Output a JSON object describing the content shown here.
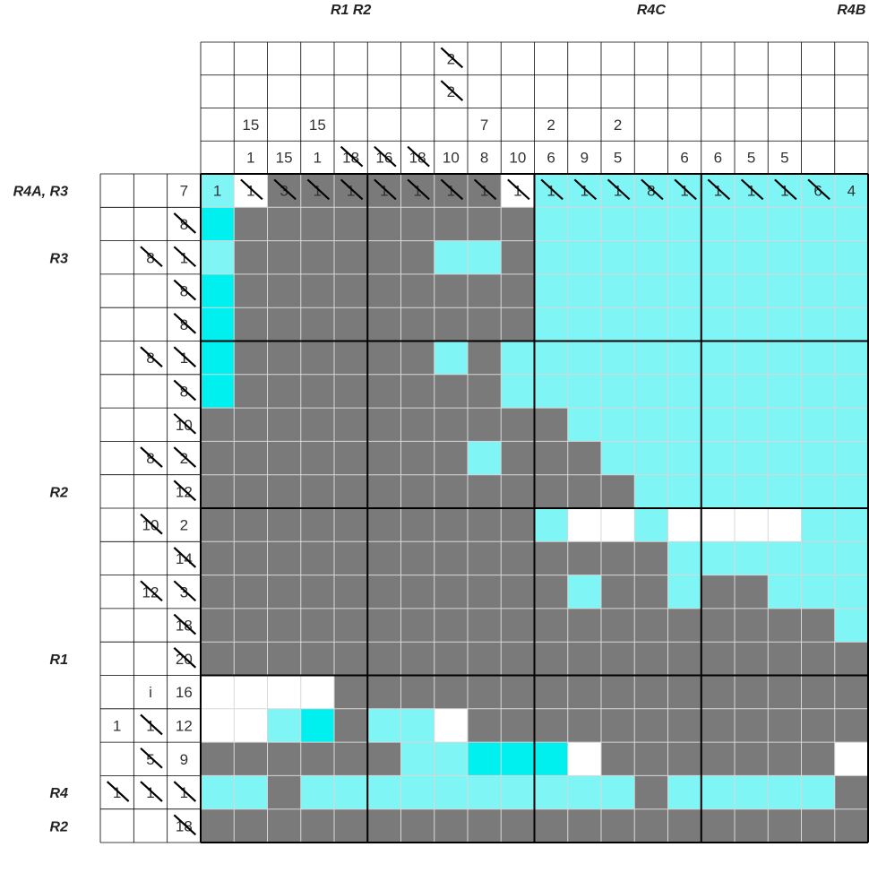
{
  "top_annotations": [
    {
      "col": 4.5,
      "text": "R1 R2"
    },
    {
      "col": 13.5,
      "text": "R4C"
    },
    {
      "col": 19.5,
      "text": "R4B"
    }
  ],
  "left_annotations": [
    {
      "row": 0,
      "text": "R4A, R3"
    },
    {
      "row": 2,
      "text": "R3"
    },
    {
      "row": 9,
      "text": "R2"
    },
    {
      "row": 14,
      "text": "R1"
    },
    {
      "row": 18,
      "text": "R4"
    },
    {
      "row": 19,
      "text": "R2"
    }
  ],
  "col_clues": [
    [
      null,
      null,
      null,
      null,
      "1"
    ],
    [
      null,
      null,
      "15",
      "1",
      "1"
    ],
    [
      null,
      null,
      null,
      "15",
      "3"
    ],
    [
      null,
      null,
      "15",
      "1",
      "1"
    ],
    [
      null,
      null,
      null,
      "18",
      "1"
    ],
    [
      null,
      null,
      null,
      "16",
      "1"
    ],
    [
      null,
      null,
      null,
      "18",
      "1"
    ],
    [
      "2",
      "2",
      null,
      "10",
      "1"
    ],
    [
      null,
      null,
      "7",
      "8",
      "1"
    ],
    [
      null,
      null,
      null,
      "10",
      "1"
    ],
    [
      null,
      null,
      "2",
      "6",
      "1"
    ],
    [
      null,
      null,
      null,
      "9",
      "1"
    ],
    [
      null,
      null,
      "2",
      "5",
      "1"
    ],
    [
      null,
      null,
      null,
      null,
      "8"
    ],
    [
      null,
      null,
      null,
      "6",
      "1"
    ],
    [
      null,
      null,
      null,
      "6",
      "1"
    ],
    [
      null,
      null,
      null,
      "5",
      "1"
    ],
    [
      null,
      null,
      null,
      "5",
      "1"
    ],
    [
      null,
      null,
      null,
      null,
      "6"
    ],
    [
      null,
      null,
      null,
      null,
      "4"
    ]
  ],
  "col_crossed": [
    [
      false,
      false,
      false,
      false,
      false
    ],
    [
      false,
      false,
      false,
      false,
      true
    ],
    [
      false,
      false,
      false,
      false,
      true
    ],
    [
      false,
      false,
      false,
      false,
      true
    ],
    [
      false,
      false,
      false,
      true,
      true
    ],
    [
      false,
      false,
      false,
      true,
      true
    ],
    [
      false,
      false,
      false,
      true,
      true
    ],
    [
      true,
      true,
      false,
      false,
      true
    ],
    [
      false,
      false,
      false,
      false,
      true
    ],
    [
      false,
      false,
      false,
      false,
      true
    ],
    [
      false,
      false,
      false,
      false,
      true
    ],
    [
      false,
      false,
      false,
      false,
      true
    ],
    [
      false,
      false,
      false,
      false,
      true
    ],
    [
      false,
      false,
      false,
      false,
      true
    ],
    [
      false,
      false,
      false,
      false,
      true
    ],
    [
      false,
      false,
      false,
      false,
      true
    ],
    [
      false,
      false,
      false,
      false,
      true
    ],
    [
      false,
      false,
      false,
      false,
      true
    ],
    [
      false,
      false,
      false,
      false,
      true
    ],
    [
      false,
      false,
      false,
      false,
      false
    ]
  ],
  "row_clues": [
    [
      null,
      null,
      "7"
    ],
    [
      null,
      null,
      "8"
    ],
    [
      null,
      "8",
      "1"
    ],
    [
      null,
      null,
      "8"
    ],
    [
      null,
      null,
      "8"
    ],
    [
      null,
      "8",
      "1"
    ],
    [
      null,
      null,
      "8"
    ],
    [
      null,
      null,
      "10"
    ],
    [
      null,
      "8",
      "2"
    ],
    [
      null,
      null,
      "12"
    ],
    [
      null,
      "10",
      "2"
    ],
    [
      null,
      null,
      "14"
    ],
    [
      null,
      "12",
      "3"
    ],
    [
      null,
      null,
      "18"
    ],
    [
      null,
      null,
      "20"
    ],
    [
      null,
      "i",
      "16"
    ],
    [
      "1",
      "1",
      "12"
    ],
    [
      null,
      "5",
      "9"
    ],
    [
      "1",
      "1",
      "1"
    ],
    [
      null,
      null,
      "18"
    ]
  ],
  "row_crossed": [
    [
      false,
      false,
      false
    ],
    [
      false,
      false,
      true
    ],
    [
      false,
      true,
      true
    ],
    [
      false,
      false,
      true
    ],
    [
      false,
      false,
      true
    ],
    [
      false,
      true,
      true
    ],
    [
      false,
      false,
      true
    ],
    [
      false,
      false,
      true
    ],
    [
      false,
      true,
      true
    ],
    [
      false,
      false,
      true
    ],
    [
      false,
      true,
      false
    ],
    [
      false,
      false,
      true
    ],
    [
      false,
      true,
      true
    ],
    [
      false,
      false,
      true
    ],
    [
      false,
      false,
      true
    ],
    [
      false,
      false,
      false
    ],
    [
      false,
      true,
      false
    ],
    [
      false,
      true,
      false
    ],
    [
      true,
      true,
      true
    ],
    [
      false,
      false,
      true
    ]
  ],
  "grid": [
    "cwgggggggwllllllllll",
    "Lggggggggglllllllllll",
    "cggggggclgllllllllll",
    "Lggggggggglllllllllll",
    "Lggggggggglllllllllll",
    "Lggggggcglllllllllll",
    "Lggggggggllllllllllll",
    "ggggggggggglllllllll",
    "ggggggggcggglllllllll",
    "ggggggggggggglllllll",
    "ggggggggggcwwcwwwwcc",
    "ggggggggggggggclllll",
    "gggggggggggcgglggccc",
    "gggggggggggggggggggl",
    "ggggggggggggggggggggg",
    "wwwwggggggggggggggggw",
    "wwcLgccwggggggggggggw",
    "ggggggccLLLwgggggggw",
    "ccgccccccccccgcccccgc",
    "ggggggggggggggggggggc"
  ],
  "colors": {
    "filled": "#7a7a7a",
    "light_cyan": "#7ff5f5",
    "bright_cyan": "#00f0f0",
    "empty": "#ffffff",
    "grid_line": "#d8d8d8",
    "border": "#000000"
  }
}
